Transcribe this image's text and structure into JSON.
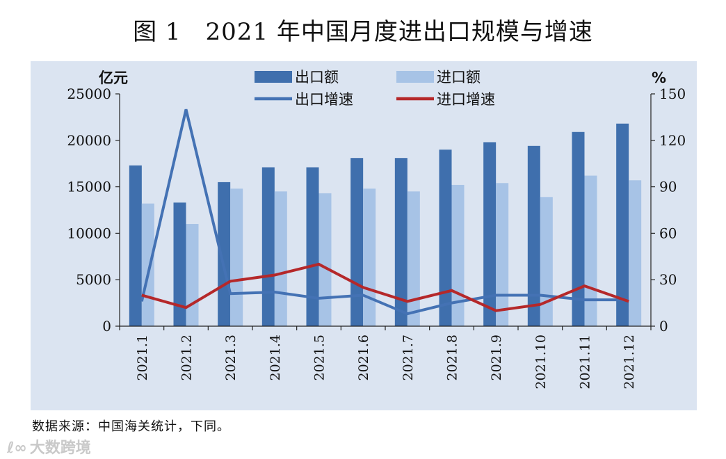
{
  "figure_title": "图 1　2021 年中国月度进出口规模与增速",
  "source_note": "数据来源：中国海关统计，下同。",
  "watermark": "大数跨境",
  "chart_data": {
    "type": "bar",
    "categories": [
      "2021.1",
      "2021.2",
      "2021.3",
      "2021.4",
      "2021.5",
      "2021.6",
      "2021.7",
      "2021.8",
      "2021.9",
      "2021.10",
      "2021.11",
      "2021.12"
    ],
    "left_axis_unit": "亿元",
    "right_axis_unit": "%",
    "ylim_left": [
      0,
      25000
    ],
    "ylim_right": [
      0,
      150
    ],
    "left_ticks": [
      "0",
      "5000",
      "10000",
      "15000",
      "20000",
      "25000"
    ],
    "right_ticks": [
      "0",
      "30",
      "60",
      "90",
      "120",
      "150"
    ],
    "grid": false,
    "legend_position": "top",
    "series": [
      {
        "name": "出口额",
        "kind": "bar",
        "axis": "left",
        "color": "#3f6fad",
        "values": [
          17300,
          13300,
          15500,
          17100,
          17100,
          18100,
          18100,
          19000,
          19800,
          19400,
          20900,
          21800
        ]
      },
      {
        "name": "进口额",
        "kind": "bar",
        "axis": "left",
        "color": "#a7c3e6",
        "values": [
          13200,
          11000,
          14800,
          14500,
          14300,
          14800,
          14500,
          15200,
          15400,
          13900,
          16200,
          15700
        ]
      },
      {
        "name": "出口增速",
        "kind": "line",
        "axis": "right",
        "color": "#4472b4",
        "values": [
          16,
          140,
          21,
          22,
          18,
          20,
          8,
          15,
          20,
          20,
          17,
          17
        ]
      },
      {
        "name": "进口增速",
        "kind": "line",
        "axis": "right",
        "color": "#b5282a",
        "values": [
          20,
          12,
          29,
          33,
          40,
          25,
          16,
          23,
          10,
          14,
          26,
          16
        ]
      }
    ]
  }
}
